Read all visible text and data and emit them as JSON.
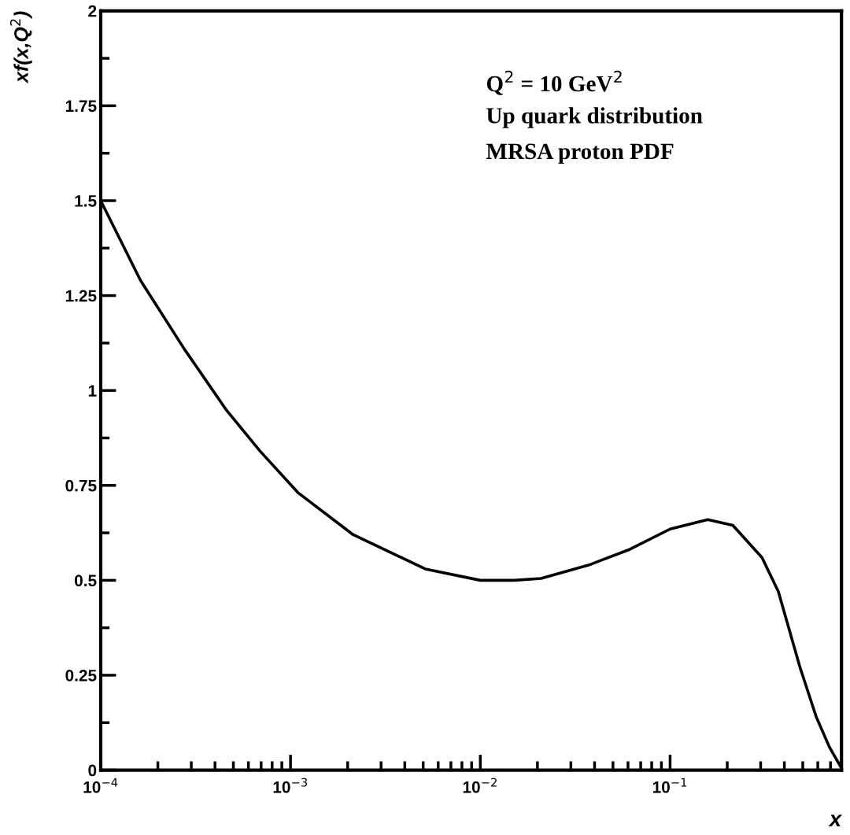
{
  "chart_data": {
    "type": "line",
    "xlabel": "x",
    "ylabel": "xf(x,Q$^{2}$)",
    "log": "x",
    "annotations": [
      "Q$^{2}$ = 10 GeV$^{2}$",
      "Up quark distribution",
      "MRSA proton PDF"
    ],
    "series": [
      {
        "color": "#000000",
        "x": [
          0.0001,
          0.000162,
          0.000275,
          0.000457,
          0.000692,
          0.0011,
          0.00214,
          0.00513,
          0.01,
          0.0151,
          0.0209,
          0.0372,
          0.0603,
          0.1,
          0.158,
          0.214,
          0.305,
          0.372,
          0.484,
          0.589,
          0.692,
          0.79
        ],
        "values": [
          1.5,
          1.29,
          1.11,
          0.95,
          0.84,
          0.73,
          0.62,
          0.53,
          0.5,
          0.5,
          0.505,
          0.54,
          0.58,
          0.635,
          0.66,
          0.645,
          0.56,
          0.47,
          0.27,
          0.14,
          0.06,
          0.01
        ]
      }
    ],
    "xlim": [
      0.0001,
      0.8
    ],
    "ylim": [
      0,
      2
    ],
    "xticks": [
      {
        "value": 0.0001,
        "label": "10$^{−4}$"
      },
      {
        "value": 0.001,
        "label": "10$^{−3}$"
      },
      {
        "value": 0.01,
        "label": "10$^{−2}$"
      },
      {
        "value": 0.1,
        "label": "10$^{−1}$"
      }
    ],
    "yticks": [
      0,
      {
        "value": 0.25,
        "label": "0.25"
      },
      {
        "value": 0.5,
        "label": "0.5"
      },
      {
        "value": 0.75,
        "label": "0.75"
      },
      1,
      {
        "value": 1.25,
        "label": "1.25"
      },
      {
        "value": 1.5,
        "label": "1.5"
      },
      {
        "value": 1.75,
        "label": "1.75"
      },
      2
    ],
    "grid": false,
    "legend": false,
    "marker": "none",
    "line_style": "solid"
  }
}
